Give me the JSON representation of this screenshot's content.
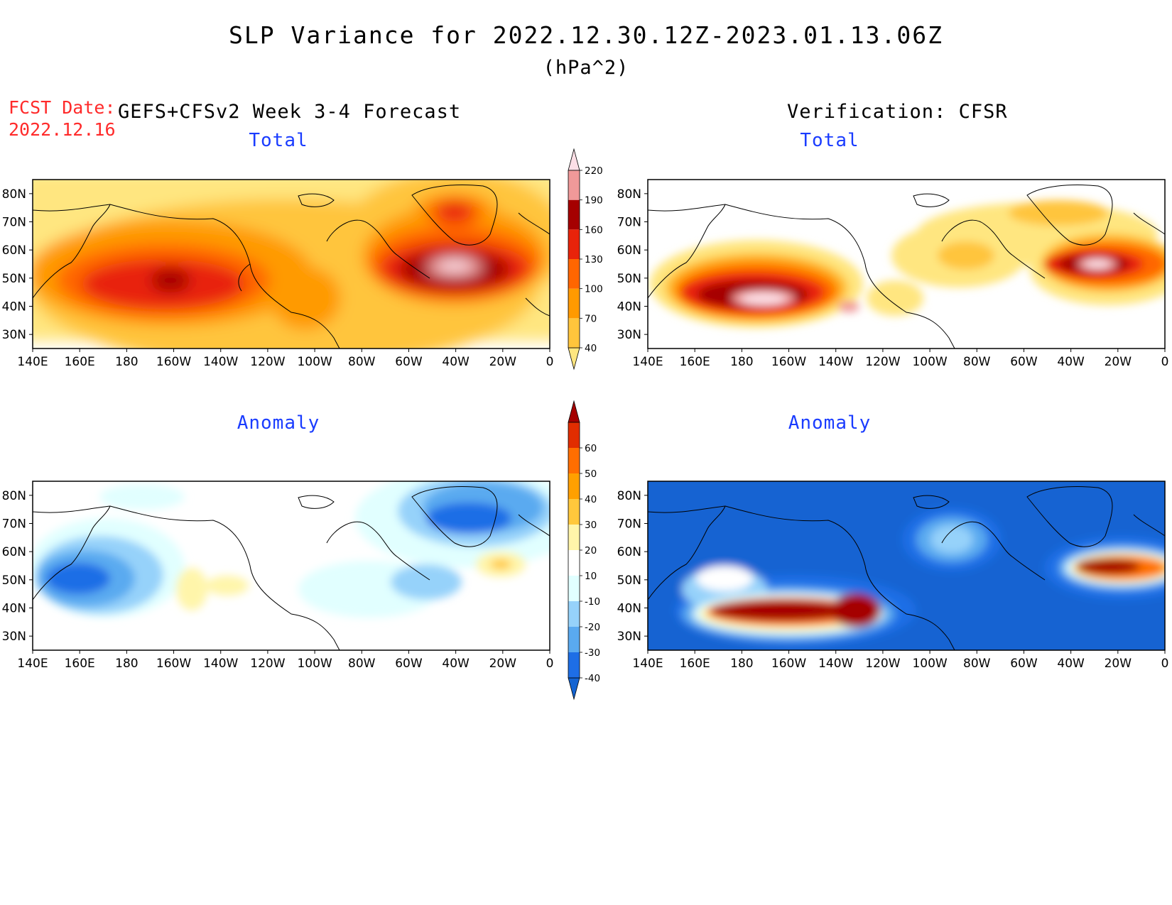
{
  "figure": {
    "title": "SLP Variance for 2022.12.30.12Z-2023.01.13.06Z",
    "units": "(hPa^2)",
    "fcst_label": "FCST Date:",
    "fcst_date": "2022.12.16",
    "left_header": "GEFS+CFSv2 Week 3-4 Forecast",
    "right_header": "Verification: CFSR"
  },
  "panels": {
    "forecast_total": {
      "title": "Total"
    },
    "verification_total": {
      "title": "Total"
    },
    "forecast_anomaly": {
      "title": "Anomaly"
    },
    "verification_anomaly": {
      "title": "Anomaly"
    }
  },
  "axes": {
    "lat_ticks": [
      "30N",
      "40N",
      "50N",
      "60N",
      "70N",
      "80N"
    ],
    "lat_values": [
      30,
      40,
      50,
      60,
      70,
      80
    ],
    "lon_ticks": [
      "140E",
      "160E",
      "180",
      "160W",
      "140W",
      "120W",
      "100W",
      "80W",
      "60W",
      "40W",
      "20W",
      "0"
    ],
    "lon_values": [
      140,
      160,
      180,
      200,
      220,
      240,
      260,
      280,
      300,
      320,
      340,
      360
    ],
    "lat_range": [
      25,
      85
    ],
    "lon_range": [
      140,
      360
    ]
  },
  "colorbars": {
    "total": {
      "labels": [
        "40",
        "70",
        "100",
        "130",
        "160",
        "190",
        "220"
      ],
      "levels": [
        40,
        70,
        100,
        130,
        160,
        190,
        220
      ],
      "colors": [
        "#ffe680",
        "#ffc53c",
        "#ff9a00",
        "#ff6600",
        "#e8230a",
        "#a50000",
        "#f09999",
        "#fcdfe6"
      ]
    },
    "anomaly": {
      "labels": [
        "-40",
        "-30",
        "-20",
        "-10",
        "10",
        "20",
        "30",
        "40",
        "50",
        "60"
      ],
      "levels": [
        -40,
        -30,
        -20,
        -10,
        10,
        20,
        30,
        40,
        50,
        60
      ],
      "colors": [
        "#1464d2",
        "#1e6ee6",
        "#5aaaf0",
        "#96d2fa",
        "#e1ffff",
        "#ffffff",
        "#fff5aa",
        "#ffc83c",
        "#ffa000",
        "#ff6e00",
        "#e12d00",
        "#a50000"
      ]
    }
  }
}
